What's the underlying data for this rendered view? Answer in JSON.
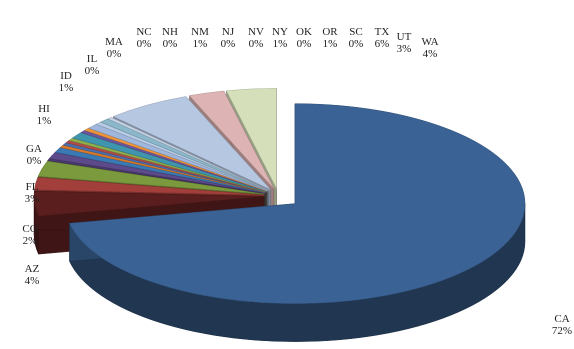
{
  "chart_data": {
    "type": "pie",
    "title": "",
    "three_d": true,
    "exploded": true,
    "legend": "none",
    "data_labels": "category-and-percent",
    "slices": [
      {
        "label": "CA",
        "percent_label": "72%",
        "value": 72.0,
        "color": "#3a6294"
      },
      {
        "label": "AZ",
        "percent_label": "4%",
        "value": 4.0,
        "color": "#5a1e1e"
      },
      {
        "label": "CO",
        "percent_label": "2%",
        "value": 2.0,
        "color": "#a33f3b"
      },
      {
        "label": "FL",
        "percent_label": "3%",
        "value": 2.5,
        "color": "#7a9a3d"
      },
      {
        "label": "GA",
        "percent_label": "0%",
        "value": 0.3,
        "color": "#4b3a72"
      },
      {
        "label": "HI",
        "percent_label": "1%",
        "value": 1.0,
        "color": "#5d4a8a"
      },
      {
        "label": "ID",
        "percent_label": "1%",
        "value": 0.8,
        "color": "#3a79b3"
      },
      {
        "label": "IL",
        "percent_label": "0%",
        "value": 0.4,
        "color": "#d97a2b"
      },
      {
        "label": "MA",
        "percent_label": "0%",
        "value": 0.4,
        "color": "#4a6fae"
      },
      {
        "label": "NC",
        "percent_label": "0%",
        "value": 0.4,
        "color": "#b04c48"
      },
      {
        "label": "NH",
        "percent_label": "0%",
        "value": 0.4,
        "color": "#8fb04e"
      },
      {
        "label": "NM",
        "percent_label": "1%",
        "value": 1.0,
        "color": "#3f95ad"
      },
      {
        "label": "NJ",
        "percent_label": "0%",
        "value": 0.4,
        "color": "#6b56a0"
      },
      {
        "label": "NV",
        "percent_label": "0%",
        "value": 0.4,
        "color": "#f0953a"
      },
      {
        "label": "NY",
        "percent_label": "1%",
        "value": 0.8,
        "color": "#9fb7dc"
      },
      {
        "label": "OK",
        "percent_label": "0%",
        "value": 0.4,
        "color": "#b9cde8"
      },
      {
        "label": "OR",
        "percent_label": "1%",
        "value": 0.7,
        "color": "#8ab7c9"
      },
      {
        "label": "SC",
        "percent_label": "0%",
        "value": 0.3,
        "color": "#c7d3e6"
      },
      {
        "label": "TX",
        "percent_label": "6%",
        "value": 6.0,
        "color": "#b6c7e1"
      },
      {
        "label": "UT",
        "percent_label": "3%",
        "value": 2.5,
        "color": "#ddb4b3"
      },
      {
        "label": "WA",
        "percent_label": "4%",
        "value": 3.5,
        "color": "#d5e0bb"
      }
    ]
  }
}
